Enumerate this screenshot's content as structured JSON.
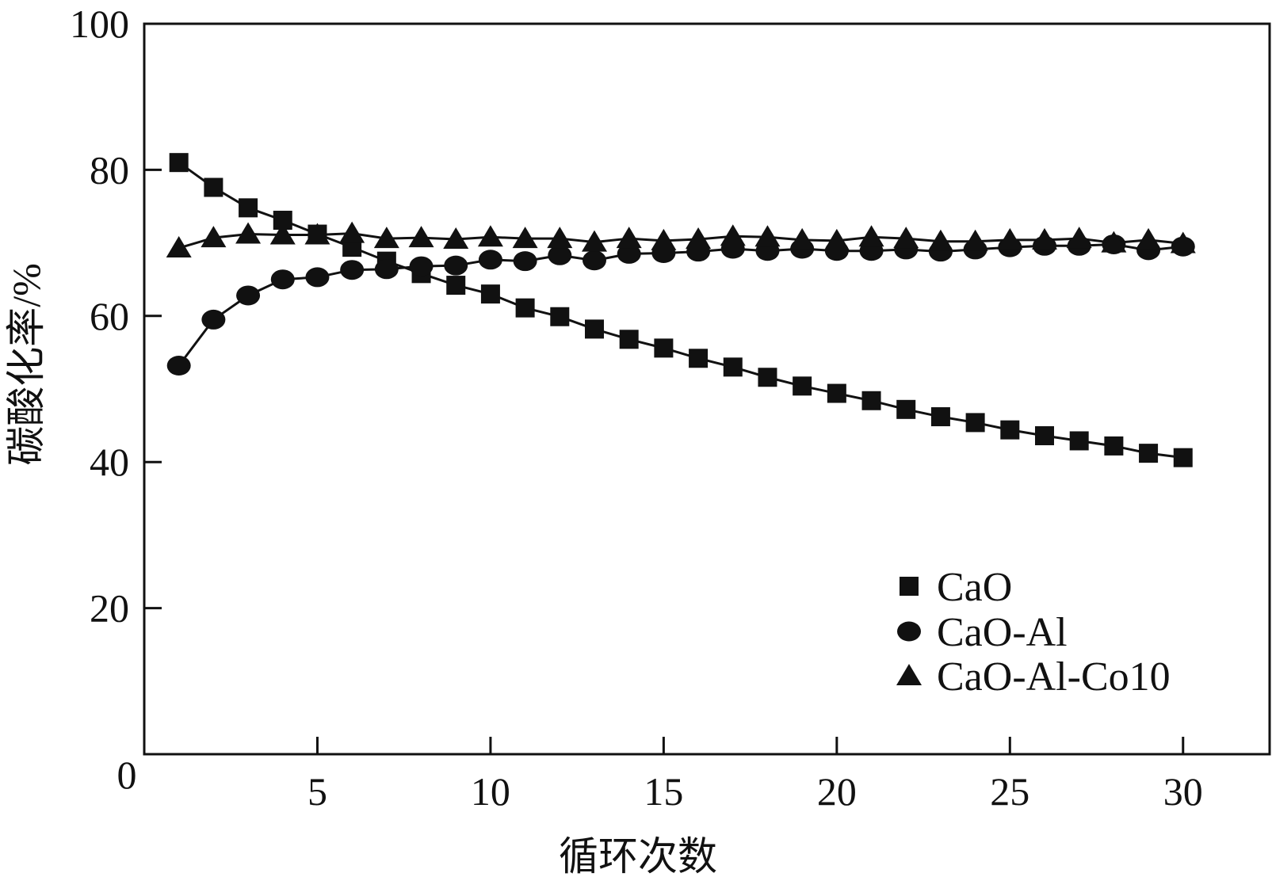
{
  "chart_data": {
    "type": "line",
    "title": "",
    "xlabel": "循环次数",
    "ylabel": "碳酸化率/%",
    "xlim": [
      0,
      32.5
    ],
    "ylim": [
      0,
      100
    ],
    "xticks": [
      5,
      10,
      15,
      20,
      25,
      30
    ],
    "yticks": [
      20,
      40,
      60,
      80,
      100
    ],
    "origin_label": "0",
    "grid": false,
    "legend_position": "lower-right",
    "x": [
      1,
      2,
      3,
      4,
      5,
      6,
      7,
      8,
      9,
      10,
      11,
      12,
      13,
      14,
      15,
      16,
      17,
      18,
      19,
      20,
      21,
      22,
      23,
      24,
      25,
      26,
      27,
      28,
      29,
      30
    ],
    "series": [
      {
        "name": "CaO",
        "marker": "square",
        "values": [
          81.0,
          77.6,
          74.8,
          73.1,
          71.2,
          69.4,
          67.5,
          65.8,
          64.2,
          63.0,
          61.1,
          59.9,
          58.2,
          56.8,
          55.6,
          54.2,
          53.0,
          51.6,
          50.4,
          49.4,
          48.4,
          47.2,
          46.2,
          45.4,
          44.4,
          43.6,
          42.9,
          42.2,
          41.2,
          40.6
        ]
      },
      {
        "name": "CaO-Al",
        "marker": "circle",
        "values": [
          53.2,
          59.5,
          62.8,
          65.0,
          65.3,
          66.3,
          66.4,
          66.8,
          66.9,
          67.7,
          67.5,
          68.3,
          67.6,
          68.5,
          68.6,
          68.8,
          69.2,
          68.9,
          69.2,
          68.9,
          68.9,
          69.1,
          68.8,
          69.1,
          69.4,
          69.6,
          69.6,
          69.8,
          69.0,
          69.5
        ]
      },
      {
        "name": "CaO-Al-Co10",
        "marker": "triangle",
        "values": [
          69.3,
          70.7,
          71.2,
          71.1,
          71.1,
          71.3,
          70.6,
          70.7,
          70.5,
          70.8,
          70.6,
          70.6,
          70.1,
          70.6,
          70.3,
          70.5,
          70.9,
          70.8,
          70.4,
          70.3,
          70.8,
          70.6,
          70.2,
          70.2,
          70.4,
          70.4,
          70.6,
          70.0,
          70.4,
          69.9
        ]
      }
    ]
  },
  "colors": {
    "ink": "#111111",
    "background": "#ffffff"
  }
}
